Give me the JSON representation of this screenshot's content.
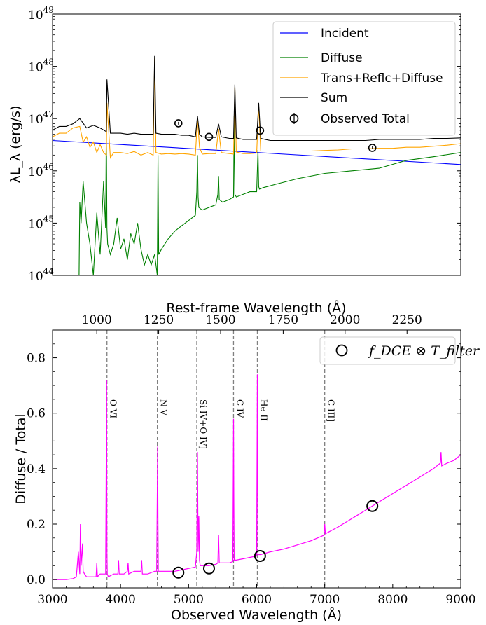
{
  "chart_data": [
    {
      "type": "line",
      "ylabel": "λL_λ (erg/s)",
      "yscale": "log",
      "ylim_exp": [
        44,
        49
      ],
      "ytick_exponents": [
        44,
        45,
        46,
        47,
        48,
        49
      ],
      "ytick_base": "10",
      "xlim": [
        3000,
        9000
      ],
      "legend_location": "top-right",
      "series": [
        {
          "name": "Incident",
          "color": "#0000ff",
          "x": [
            3000,
            9000
          ],
          "y_log": [
            46.58,
            46.12
          ]
        },
        {
          "name": "Diffuse",
          "color": "#008000",
          "x": [
            3390,
            3400,
            3420,
            3450,
            3500,
            3550,
            3600,
            3650,
            3700,
            3750,
            3780,
            3790,
            3800,
            3810,
            3850,
            3900,
            3950,
            4000,
            4050,
            4100,
            4150,
            4200,
            4250,
            4300,
            4350,
            4400,
            4450,
            4500,
            4540,
            4550,
            4560,
            4600,
            4700,
            4800,
            4900,
            5000,
            5100,
            5120,
            5130,
            5140,
            5150,
            5200,
            5300,
            5400,
            5430,
            5440,
            5450,
            5500,
            5600,
            5660,
            5670,
            5680,
            5700,
            5800,
            5900,
            6000,
            6020,
            6030,
            6040,
            6100,
            6300,
            6600,
            7000,
            7400,
            7800,
            8200,
            8600,
            9000
          ],
          "y_log": [
            44.0,
            45.4,
            45.0,
            45.8,
            45.0,
            44.6,
            44.0,
            45.2,
            44.4,
            45.8,
            44.9,
            47.0,
            44.9,
            44.6,
            44.4,
            44.6,
            45.1,
            44.5,
            44.7,
            44.3,
            44.8,
            44.6,
            45.0,
            44.5,
            44.2,
            44.4,
            44.2,
            44.4,
            44.0,
            46.3,
            44.4,
            44.5,
            44.7,
            44.85,
            44.95,
            45.05,
            45.15,
            45.6,
            46.3,
            45.5,
            45.3,
            45.25,
            45.3,
            45.35,
            45.55,
            45.9,
            45.45,
            45.4,
            45.45,
            45.5,
            47.05,
            45.55,
            45.5,
            45.55,
            45.6,
            45.6,
            46.4,
            45.7,
            45.65,
            45.68,
            45.75,
            45.85,
            45.95,
            46.0,
            46.05,
            46.2,
            46.27,
            46.35
          ]
        },
        {
          "name": "Trans+Reflc+Diffuse",
          "color": "#ffa500",
          "x": [
            3000,
            3100,
            3200,
            3300,
            3400,
            3450,
            3500,
            3550,
            3600,
            3650,
            3700,
            3750,
            3790,
            3800,
            3850,
            3900,
            4000,
            4100,
            4200,
            4300,
            4400,
            4480,
            4500,
            4520,
            4600,
            4700,
            4800,
            4900,
            5000,
            5100,
            5130,
            5160,
            5200,
            5300,
            5400,
            5440,
            5480,
            5600,
            5660,
            5680,
            5700,
            5800,
            5900,
            6000,
            6030,
            6060,
            6200,
            6400,
            6600,
            6800,
            7000,
            7200,
            7400,
            7600,
            7800,
            8000,
            8200,
            8400,
            8600,
            8800,
            9000
          ],
          "y_log": [
            46.65,
            46.72,
            46.72,
            46.82,
            46.85,
            46.55,
            46.65,
            46.45,
            46.55,
            46.35,
            46.5,
            46.35,
            46.3,
            47.3,
            46.25,
            46.35,
            46.35,
            46.33,
            46.37,
            46.3,
            46.35,
            46.3,
            48.15,
            46.35,
            46.32,
            46.33,
            46.32,
            46.33,
            46.32,
            46.3,
            47.0,
            46.45,
            46.32,
            46.33,
            46.33,
            46.8,
            46.35,
            46.33,
            46.32,
            47.6,
            46.36,
            46.33,
            46.33,
            46.34,
            47.25,
            46.38,
            46.38,
            46.38,
            46.38,
            46.38,
            46.39,
            46.4,
            46.42,
            46.42,
            46.43,
            46.43,
            46.45,
            46.45,
            46.47,
            46.49,
            46.52
          ]
        },
        {
          "name": "Sum",
          "color": "#000000",
          "x": [
            3000,
            3100,
            3200,
            3300,
            3400,
            3500,
            3600,
            3700,
            3790,
            3800,
            3850,
            3900,
            4000,
            4100,
            4200,
            4300,
            4400,
            4480,
            4500,
            4520,
            4600,
            4700,
            4800,
            4900,
            5000,
            5100,
            5130,
            5160,
            5200,
            5300,
            5400,
            5440,
            5480,
            5600,
            5660,
            5680,
            5700,
            5800,
            5900,
            6000,
            6030,
            6060,
            6200,
            6400,
            6600,
            6800,
            7000,
            7200,
            7400,
            7600,
            7800,
            8000,
            8200,
            8400,
            8600,
            8800,
            9000
          ],
          "y_log": [
            46.78,
            46.85,
            46.85,
            46.9,
            47.0,
            46.82,
            46.87,
            46.82,
            46.75,
            47.75,
            46.72,
            46.72,
            46.72,
            46.7,
            46.72,
            46.7,
            46.7,
            46.7,
            48.2,
            46.72,
            46.7,
            46.7,
            46.7,
            46.68,
            46.68,
            46.65,
            47.05,
            46.7,
            46.65,
            46.64,
            46.64,
            46.9,
            46.65,
            46.62,
            46.62,
            47.65,
            46.63,
            46.6,
            46.6,
            46.6,
            47.3,
            46.62,
            46.58,
            46.58,
            46.58,
            46.58,
            46.58,
            46.58,
            46.58,
            46.58,
            46.6,
            46.6,
            46.6,
            46.6,
            46.62,
            46.62,
            46.63
          ]
        }
      ],
      "observed": {
        "name": "Observed Total",
        "x": [
          4850,
          5300,
          6050,
          7700
        ],
        "y_log": [
          46.91,
          46.65,
          46.77,
          46.44
        ]
      }
    },
    {
      "type": "line",
      "xlabel": "Observed Wavelength (Å)",
      "ylabel": "Diffuse / Total",
      "top_xlabel": "Rest-frame Wavelength (Å)",
      "xlim": [
        3000,
        9000
      ],
      "ylim": [
        -0.03,
        0.9
      ],
      "xticks": [
        3000,
        4000,
        5000,
        6000,
        7000,
        8000,
        9000
      ],
      "yticks": [
        0.0,
        0.2,
        0.4,
        0.6,
        0.8
      ],
      "top_xticks": [
        1000,
        1250,
        1500,
        1750,
        2000,
        2250
      ],
      "top_ticks_observed_x": [
        3650,
        4560,
        5470,
        6390,
        7300,
        8210
      ],
      "legend_location": "top-right",
      "legend_label": "f_DCE ⊗ T_filter",
      "series": [
        {
          "name": "",
          "color": "#ff00ff",
          "x": [
            3000,
            3200,
            3300,
            3350,
            3380,
            3400,
            3410,
            3420,
            3440,
            3450,
            3470,
            3500,
            3600,
            3640,
            3650,
            3660,
            3700,
            3780,
            3795,
            3800,
            3805,
            3820,
            3900,
            3960,
            3970,
            3980,
            4050,
            4100,
            4110,
            4120,
            4200,
            4300,
            4310,
            4320,
            4400,
            4500,
            4530,
            4545,
            4550,
            4555,
            4570,
            4600,
            4800,
            5000,
            5100,
            5120,
            5130,
            5140,
            5150,
            5160,
            5170,
            5200,
            5300,
            5400,
            5430,
            5440,
            5450,
            5500,
            5600,
            5650,
            5660,
            5665,
            5670,
            5680,
            5700,
            5800,
            5900,
            6000,
            6010,
            6015,
            6020,
            6030,
            6060,
            6200,
            6400,
            6600,
            6800,
            6990,
            7000,
            7010,
            7200,
            7400,
            7600,
            7800,
            8000,
            8200,
            8400,
            8600,
            8700,
            8710,
            8720,
            8800,
            8900,
            9000
          ],
          "y": [
            0.0,
            0.0,
            0.003,
            0.01,
            0.1,
            0.02,
            0.2,
            0.05,
            0.13,
            0.03,
            0.02,
            0.01,
            0.01,
            0.01,
            0.06,
            0.01,
            0.02,
            0.02,
            0.72,
            0.1,
            0.02,
            0.01,
            0.02,
            0.02,
            0.07,
            0.02,
            0.02,
            0.03,
            0.06,
            0.02,
            0.03,
            0.03,
            0.07,
            0.02,
            0.02,
            0.03,
            0.03,
            0.48,
            0.2,
            0.03,
            0.03,
            0.03,
            0.03,
            0.04,
            0.045,
            0.1,
            0.46,
            0.1,
            0.23,
            0.07,
            0.05,
            0.05,
            0.05,
            0.055,
            0.06,
            0.16,
            0.06,
            0.06,
            0.06,
            0.065,
            0.58,
            0.3,
            0.07,
            0.07,
            0.07,
            0.075,
            0.08,
            0.085,
            0.74,
            0.4,
            0.09,
            0.09,
            0.09,
            0.1,
            0.11,
            0.125,
            0.14,
            0.16,
            0.2,
            0.165,
            0.19,
            0.22,
            0.25,
            0.28,
            0.31,
            0.34,
            0.37,
            0.4,
            0.42,
            0.46,
            0.41,
            0.42,
            0.43,
            0.45
          ]
        }
      ],
      "observed": {
        "x": [
          4850,
          5300,
          6050,
          7700
        ],
        "y": [
          0.025,
          0.04,
          0.085,
          0.265
        ]
      },
      "emission_lines": [
        {
          "label": "O VI",
          "x": 3800
        },
        {
          "label": "N V",
          "x": 4540
        },
        {
          "label": "Si IV+O IV]",
          "x": 5120
        },
        {
          "label": "C IV",
          "x": 5660
        },
        {
          "label": "He II",
          "x": 6010
        },
        {
          "label": "C III]",
          "x": 7000
        }
      ]
    }
  ]
}
